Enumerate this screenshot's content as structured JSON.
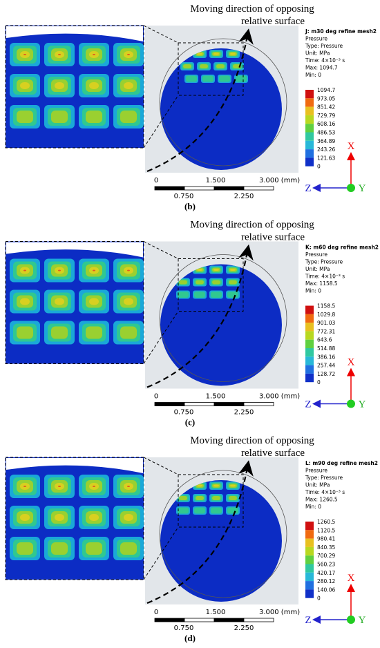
{
  "panels": [
    {
      "annotation": [
        "Moving direction of opposing",
        "relative surface"
      ],
      "legend": [
        "J: m30 deg refine mesh2",
        "Pressure",
        "Type: Pressure",
        "Unit: MPa",
        "Time: 4×10⁻³ s",
        "Max: 1094.7",
        "Min: 0"
      ],
      "levels": [
        "1094.7",
        "973.05",
        "851.42",
        "729.79",
        "608.16",
        "486.53",
        "364.89",
        "243.26",
        "121.63",
        "0"
      ],
      "scale": [
        "0",
        "1.500",
        "3.000 (mm)",
        "0.750",
        "2.250"
      ],
      "axes": [
        "X",
        "Z",
        "Y"
      ],
      "caption": "(b)"
    },
    {
      "annotation": [
        "Moving direction of opposing",
        "relative surface"
      ],
      "legend": [
        "K: m60 deg refine mesh2",
        "Pressure",
        "Type: Pressure",
        "Unit: MPa",
        "Time: 4×10⁻³ s",
        "Max: 1158.5",
        "Min: 0"
      ],
      "levels": [
        "1158.5",
        "1029.8",
        "901.03",
        "772.31",
        "643.6",
        "514.88",
        "386.16",
        "257.44",
        "128.72",
        "0"
      ],
      "scale": [
        "0",
        "1.500",
        "3.000 (mm)",
        "0.750",
        "2.250"
      ],
      "axes": [
        "X",
        "Z",
        "Y"
      ],
      "caption": "(c)"
    },
    {
      "annotation": [
        "Moving direction of opposing",
        "relative surface"
      ],
      "legend": [
        "L: m90 deg refine mesh2",
        "Pressure",
        "Type: Pressure",
        "Unit: MPa",
        "Time: 4×10⁻³ s",
        "Max: 1260.5",
        "Min: 0"
      ],
      "levels": [
        "1260.5",
        "1120.5",
        "980.41",
        "840.35",
        "700.29",
        "560.23",
        "420.17",
        "280.12",
        "140.06",
        "0"
      ],
      "scale": [
        "0",
        "1.500",
        "3.000 (mm)",
        "0.750",
        "2.250"
      ],
      "axes": [
        "X",
        "Z",
        "Y"
      ],
      "caption": "(d)"
    }
  ]
}
